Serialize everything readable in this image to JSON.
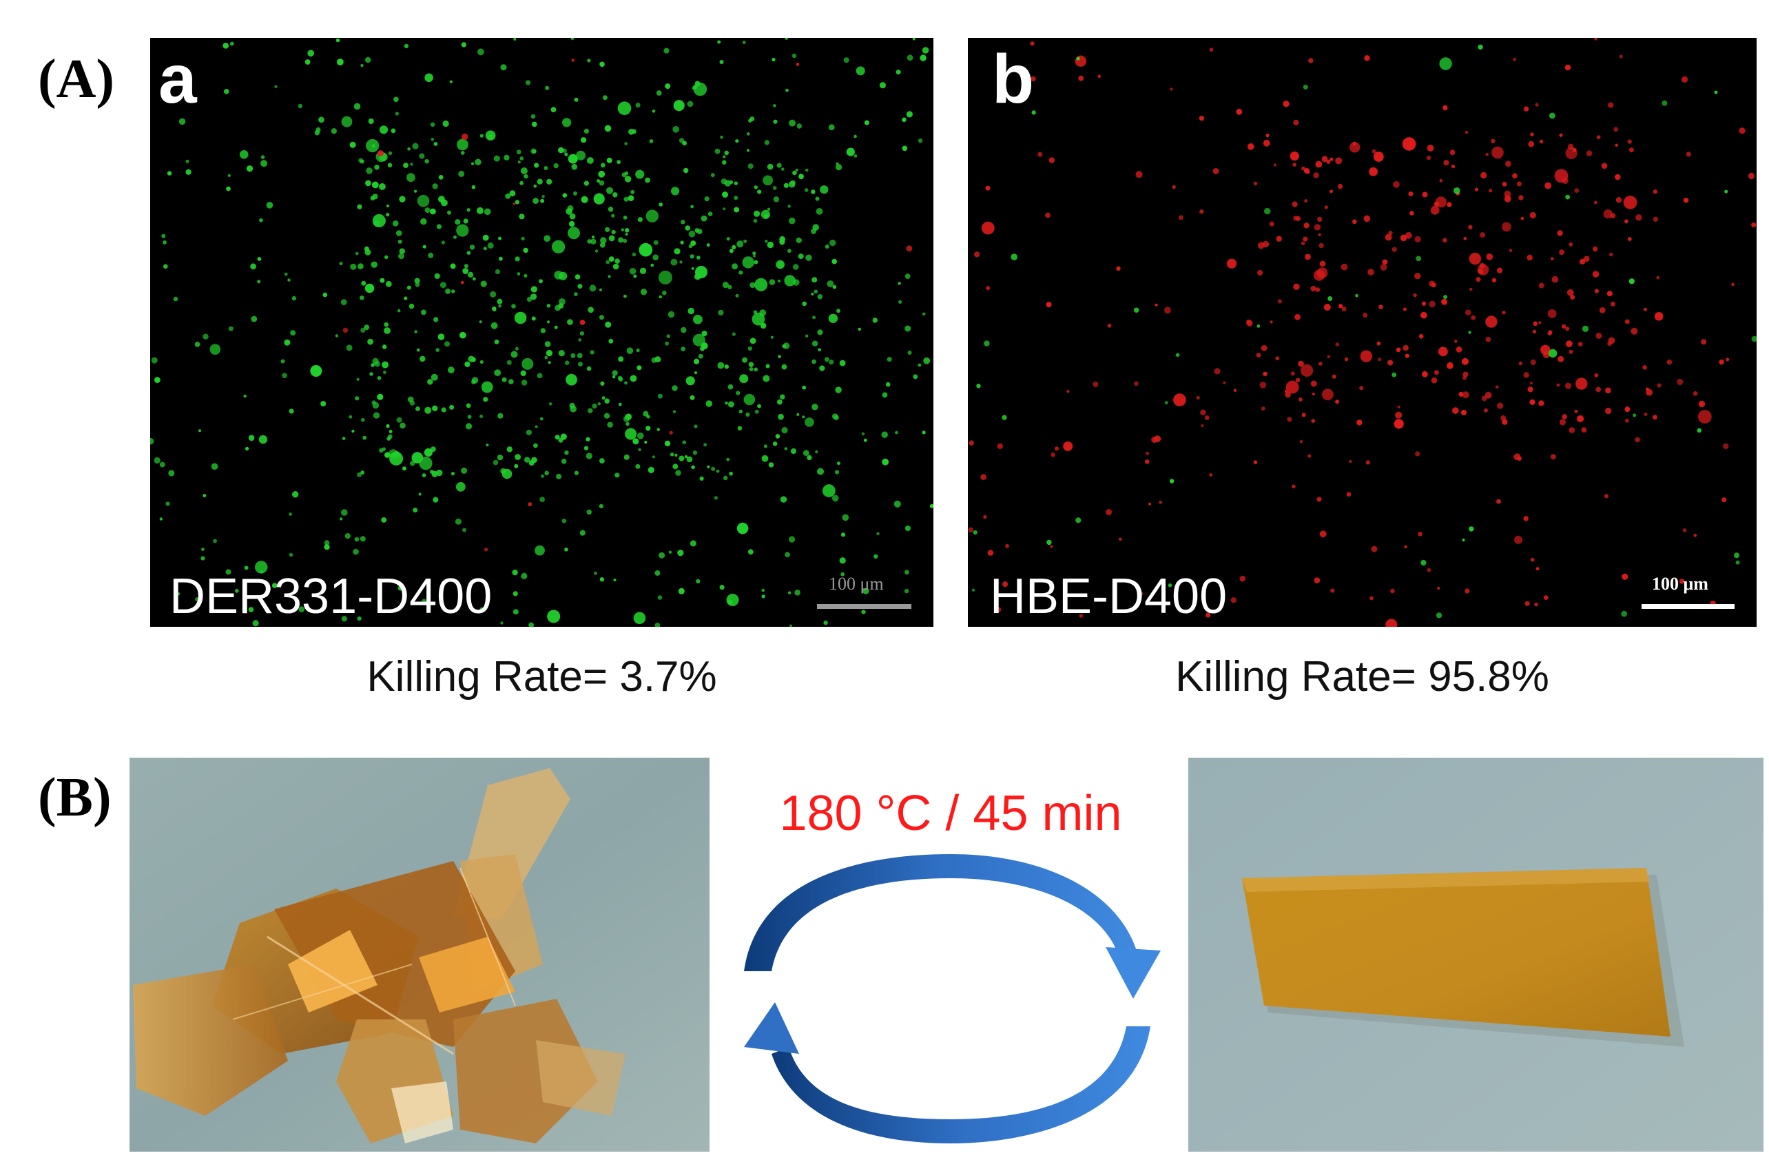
{
  "figure": {
    "panel_a_label": "(A)",
    "panel_b_label": "(B)",
    "micrographs": [
      {
        "letter": "a",
        "sample": "DER331-D400",
        "scale": "100 μm",
        "killing_rate": "Killing Rate= 3.7%",
        "dominant_color": "#21d12b",
        "minor_color": "#e01b1b"
      },
      {
        "letter": "b",
        "sample": "HBE-D400",
        "scale": "100 μm",
        "killing_rate": "Killing Rate= 95.8%",
        "dominant_color": "#e01b1b",
        "minor_color": "#21d12b"
      }
    ],
    "recycling": {
      "condition": "180 °C / 45 min",
      "arrow_color": "#1f5fb8",
      "left_photo": "film-fragments",
      "right_photo": "reprocessed-film"
    }
  }
}
